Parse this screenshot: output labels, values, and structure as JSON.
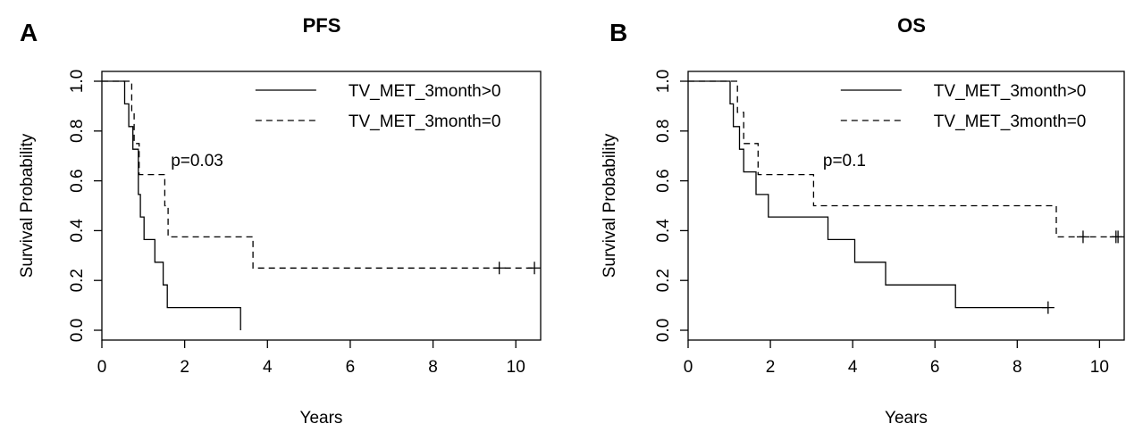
{
  "chart_data": [
    {
      "type": "line",
      "panel_label": "A",
      "title": "PFS",
      "xlabel": "Years",
      "ylabel": "Survival Probability",
      "xlim": [
        0,
        10.6
      ],
      "ylim": [
        0,
        1
      ],
      "x_ticks": [
        0,
        2,
        4,
        6,
        8,
        10
      ],
      "y_ticks": [
        0.0,
        0.2,
        0.4,
        0.6,
        0.8,
        1.0
      ],
      "y_tick_labels": [
        "0.0",
        "0.2",
        "0.4",
        "0.6",
        "0.8",
        "1.0"
      ],
      "grid": false,
      "legend_position": "top-right",
      "annotation": "p=0.03",
      "annotation_at": [
        2.3,
        0.66
      ],
      "series": [
        {
          "name": "TV_MET_3month>0",
          "dash": "solid",
          "points": [
            [
              0,
              1.0
            ],
            [
              0.55,
              1.0
            ],
            [
              0.55,
              0.909
            ],
            [
              0.65,
              0.909
            ],
            [
              0.65,
              0.818
            ],
            [
              0.75,
              0.818
            ],
            [
              0.75,
              0.727
            ],
            [
              0.88,
              0.727
            ],
            [
              0.88,
              0.545
            ],
            [
              0.93,
              0.545
            ],
            [
              0.93,
              0.455
            ],
            [
              1.02,
              0.455
            ],
            [
              1.02,
              0.364
            ],
            [
              1.28,
              0.364
            ],
            [
              1.28,
              0.273
            ],
            [
              1.48,
              0.273
            ],
            [
              1.48,
              0.182
            ],
            [
              1.58,
              0.182
            ],
            [
              1.58,
              0.091
            ],
            [
              3.35,
              0.091
            ],
            [
              3.35,
              0.0
            ]
          ],
          "censored": []
        },
        {
          "name": "TV_MET_3month=0",
          "dash": "dashed",
          "points": [
            [
              0,
              1.0
            ],
            [
              0.72,
              1.0
            ],
            [
              0.72,
              0.875
            ],
            [
              0.78,
              0.875
            ],
            [
              0.78,
              0.75
            ],
            [
              0.9,
              0.75
            ],
            [
              0.9,
              0.625
            ],
            [
              1.52,
              0.625
            ],
            [
              1.52,
              0.5
            ],
            [
              1.6,
              0.5
            ],
            [
              1.6,
              0.375
            ],
            [
              3.65,
              0.375
            ],
            [
              3.65,
              0.25
            ],
            [
              10.45,
              0.25
            ]
          ],
          "censored": [
            [
              9.6,
              0.25
            ],
            [
              10.45,
              0.25
            ]
          ]
        }
      ]
    },
    {
      "type": "line",
      "panel_label": "B",
      "title": "OS",
      "xlabel": "Years",
      "ylabel": "Survival Probability",
      "xlim": [
        0,
        10.6
      ],
      "ylim": [
        0,
        1
      ],
      "x_ticks": [
        0,
        2,
        4,
        6,
        8,
        10
      ],
      "y_ticks": [
        0.0,
        0.2,
        0.4,
        0.6,
        0.8,
        1.0
      ],
      "y_tick_labels": [
        "0.0",
        "0.2",
        "0.4",
        "0.6",
        "0.8",
        "1.0"
      ],
      "grid": false,
      "legend_position": "top-right",
      "annotation": "p=0.1",
      "annotation_at": [
        3.8,
        0.66
      ],
      "series": [
        {
          "name": "TV_MET_3month>0",
          "dash": "solid",
          "points": [
            [
              0,
              1.0
            ],
            [
              1.02,
              1.0
            ],
            [
              1.02,
              0.909
            ],
            [
              1.1,
              0.909
            ],
            [
              1.1,
              0.818
            ],
            [
              1.25,
              0.818
            ],
            [
              1.25,
              0.727
            ],
            [
              1.35,
              0.727
            ],
            [
              1.35,
              0.636
            ],
            [
              1.65,
              0.636
            ],
            [
              1.65,
              0.545
            ],
            [
              1.95,
              0.545
            ],
            [
              1.95,
              0.455
            ],
            [
              3.4,
              0.455
            ],
            [
              3.4,
              0.364
            ],
            [
              4.05,
              0.364
            ],
            [
              4.05,
              0.273
            ],
            [
              4.8,
              0.273
            ],
            [
              4.8,
              0.182
            ],
            [
              6.5,
              0.182
            ],
            [
              6.5,
              0.091
            ],
            [
              8.75,
              0.091
            ]
          ],
          "censored": [
            [
              8.75,
              0.091
            ]
          ]
        },
        {
          "name": "TV_MET_3month=0",
          "dash": "dashed",
          "points": [
            [
              0,
              1.0
            ],
            [
              1.2,
              1.0
            ],
            [
              1.2,
              0.875
            ],
            [
              1.35,
              0.875
            ],
            [
              1.35,
              0.75
            ],
            [
              1.7,
              0.75
            ],
            [
              1.7,
              0.625
            ],
            [
              3.05,
              0.625
            ],
            [
              3.05,
              0.5
            ],
            [
              8.95,
              0.5
            ],
            [
              8.95,
              0.375
            ],
            [
              10.45,
              0.375
            ]
          ],
          "censored": [
            [
              9.6,
              0.375
            ],
            [
              10.4,
              0.375
            ],
            [
              10.45,
              0.375
            ]
          ]
        }
      ]
    }
  ]
}
